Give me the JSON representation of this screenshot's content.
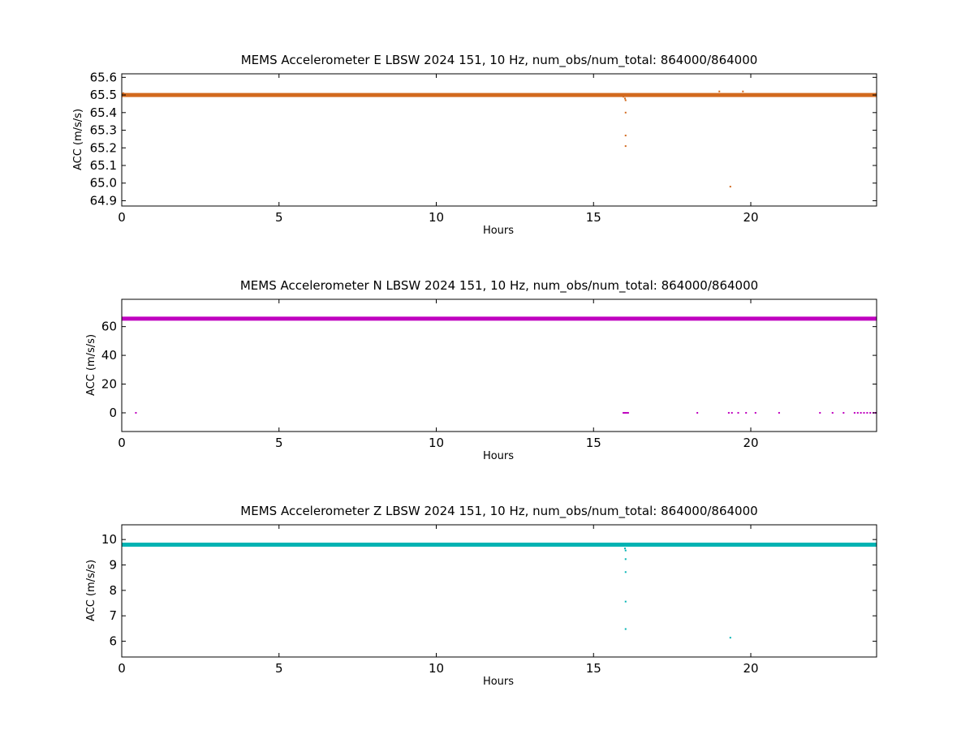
{
  "figure": {
    "background": "#ffffff"
  },
  "chart_data": [
    {
      "type": "scatter",
      "title": "MEMS Accelerometer E LBSW 2024 151, 10 Hz, num_obs/num_total: 864000/864000",
      "xlabel": "Hours",
      "ylabel": "ACC (m/s/s)",
      "xlim": [
        0,
        24
      ],
      "ylim": [
        64.87,
        65.62
      ],
      "xticks": [
        0,
        5,
        10,
        15,
        20
      ],
      "yticks": [
        64.9,
        65.0,
        65.1,
        65.2,
        65.3,
        65.4,
        65.5,
        65.6
      ],
      "ytick_labels": [
        "64.9",
        "65.0",
        "65.1",
        "65.2",
        "65.3",
        "65.4",
        "65.5",
        "65.6"
      ],
      "color": "#d2691e",
      "grid": false,
      "baseline": {
        "x_start": 0,
        "x_end": 24,
        "y": 65.5
      },
      "points": [
        {
          "x": 0.05,
          "y": 65.51
        },
        {
          "x": 15.95,
          "y": 65.49
        },
        {
          "x": 16.0,
          "y": 65.48
        },
        {
          "x": 16.02,
          "y": 65.47
        },
        {
          "x": 16.02,
          "y": 65.4
        },
        {
          "x": 16.02,
          "y": 65.27
        },
        {
          "x": 16.02,
          "y": 65.21
        },
        {
          "x": 19.0,
          "y": 65.52
        },
        {
          "x": 19.35,
          "y": 64.98
        },
        {
          "x": 19.75,
          "y": 65.52
        }
      ]
    },
    {
      "type": "scatter",
      "title": "MEMS Accelerometer N LBSW 2024 151, 10 Hz, num_obs/num_total: 864000/864000",
      "xlabel": "Hours",
      "ylabel": "ACC (m/s/s)",
      "xlim": [
        0,
        24
      ],
      "ylim": [
        -13,
        79
      ],
      "xticks": [
        0,
        5,
        10,
        15,
        20
      ],
      "yticks": [
        0,
        20,
        40,
        60
      ],
      "ytick_labels": [
        "0",
        "20",
        "40",
        "60"
      ],
      "color": "#bf00bf",
      "grid": false,
      "baseline": {
        "x_start": 0,
        "x_end": 24,
        "y": 65.5
      },
      "points": [
        {
          "x": 0.45,
          "y": 0
        },
        {
          "x": 15.95,
          "y": 0
        },
        {
          "x": 16.0,
          "y": 0
        },
        {
          "x": 16.05,
          "y": 0
        },
        {
          "x": 16.1,
          "y": 0
        },
        {
          "x": 18.3,
          "y": 0
        },
        {
          "x": 19.3,
          "y": 0
        },
        {
          "x": 19.4,
          "y": 0
        },
        {
          "x": 19.6,
          "y": 0
        },
        {
          "x": 19.85,
          "y": 0
        },
        {
          "x": 20.15,
          "y": 0
        },
        {
          "x": 20.9,
          "y": 0
        },
        {
          "x": 22.2,
          "y": 0
        },
        {
          "x": 22.6,
          "y": 0
        },
        {
          "x": 22.95,
          "y": 0
        },
        {
          "x": 23.3,
          "y": 0
        },
        {
          "x": 23.4,
          "y": 0
        },
        {
          "x": 23.5,
          "y": 0
        },
        {
          "x": 23.6,
          "y": 0
        },
        {
          "x": 23.7,
          "y": 0
        },
        {
          "x": 23.8,
          "y": 0
        },
        {
          "x": 23.9,
          "y": 0
        },
        {
          "x": 23.97,
          "y": 0
        }
      ]
    },
    {
      "type": "scatter",
      "title": "MEMS Accelerometer Z LBSW 2024 151, 10 Hz, num_obs/num_total: 864000/864000",
      "xlabel": "Hours",
      "ylabel": "ACC (m/s/s)",
      "xlim": [
        0,
        24
      ],
      "ylim": [
        5.38,
        10.58
      ],
      "xticks": [
        0,
        5,
        10,
        15,
        20
      ],
      "yticks": [
        6,
        7,
        8,
        9,
        10
      ],
      "ytick_labels": [
        "6",
        "7",
        "8",
        "9",
        "10"
      ],
      "color": "#00b3b3",
      "grid": false,
      "baseline": {
        "x_start": 0,
        "x_end": 24,
        "y": 9.8
      },
      "points": [
        {
          "x": 0.9,
          "y": 9.76
        },
        {
          "x": 1.2,
          "y": 9.77
        },
        {
          "x": 16.0,
          "y": 9.65
        },
        {
          "x": 16.02,
          "y": 9.57
        },
        {
          "x": 16.02,
          "y": 9.23
        },
        {
          "x": 16.02,
          "y": 8.72
        },
        {
          "x": 16.02,
          "y": 7.56
        },
        {
          "x": 16.02,
          "y": 6.48
        },
        {
          "x": 19.35,
          "y": 6.14
        }
      ]
    }
  ]
}
